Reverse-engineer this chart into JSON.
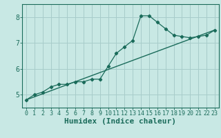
{
  "title": "",
  "xlabel": "Humidex (Indice chaleur)",
  "background_color": "#c8e8e4",
  "grid_color": "#a8ccca",
  "line_color": "#1a6b5a",
  "xlim": [
    -0.5,
    23.5
  ],
  "ylim": [
    4.5,
    8.5
  ],
  "yticks": [
    5,
    6,
    7,
    8
  ],
  "xticks": [
    0,
    1,
    2,
    3,
    4,
    5,
    6,
    7,
    8,
    9,
    10,
    11,
    12,
    13,
    14,
    15,
    16,
    17,
    18,
    19,
    20,
    21,
    22,
    23
  ],
  "line1_x": [
    0,
    1,
    2,
    3,
    4,
    5,
    6,
    7,
    8,
    9,
    10,
    11,
    12,
    13,
    14,
    15,
    16,
    17,
    18,
    19,
    20,
    21,
    22,
    23
  ],
  "line1_y": [
    4.8,
    5.0,
    5.1,
    5.3,
    5.4,
    5.4,
    5.5,
    5.5,
    5.6,
    5.6,
    6.1,
    6.6,
    6.85,
    7.1,
    8.05,
    8.05,
    7.8,
    7.55,
    7.3,
    7.25,
    7.2,
    7.25,
    7.3,
    7.5
  ],
  "line2_x": [
    0,
    23
  ],
  "line2_y": [
    4.8,
    7.5
  ],
  "fontsize_label": 7,
  "fontsize_tick": 6
}
